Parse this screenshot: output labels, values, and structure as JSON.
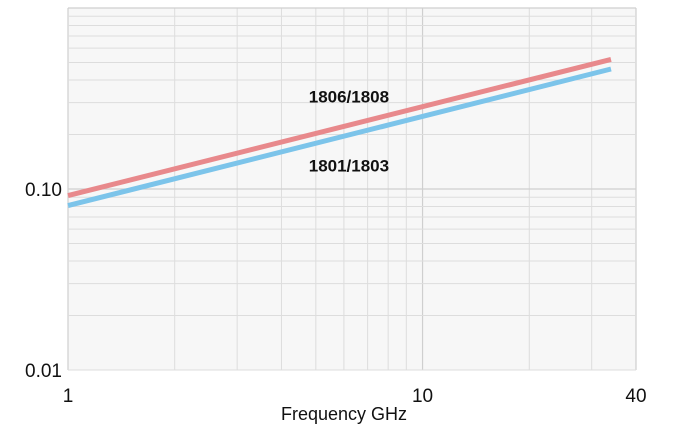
{
  "chart_data": {
    "type": "line",
    "xlabel": "Frequency GHz",
    "ylabel": "",
    "x_scale": "log",
    "y_scale": "log",
    "xlim": [
      1,
      40
    ],
    "ylim": [
      0.01,
      1
    ],
    "x_ticks": [
      {
        "value": 1,
        "label": "1"
      },
      {
        "value": 10,
        "label": "10"
      },
      {
        "value": 40,
        "label": "40"
      }
    ],
    "y_ticks": [
      {
        "value": 0.01,
        "label": "0.01"
      },
      {
        "value": 0.1,
        "label": "0.10"
      }
    ],
    "grid": true,
    "series": [
      {
        "name": "1806/1808",
        "color": "#e8898c",
        "x": [
          1,
          34
        ],
        "y": [
          0.092,
          0.52
        ]
      },
      {
        "name": "1801/1803",
        "color": "#7cc4ea",
        "x": [
          1,
          34
        ],
        "y": [
          0.081,
          0.46
        ]
      }
    ]
  }
}
